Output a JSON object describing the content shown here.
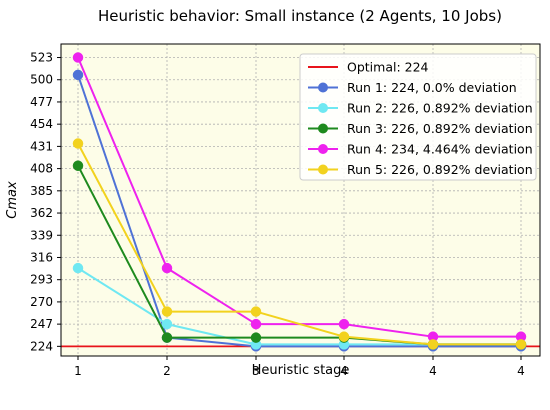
{
  "chart_data": {
    "type": "line",
    "title": "Heuristic behavior: Small instance (2 Agents, 10 Jobs)",
    "xlabel": "Heuristic stage",
    "ylabel": "Cmax",
    "categories": [
      "1",
      "2",
      "3",
      "4",
      "4",
      "4"
    ],
    "y_ticks": [
      224,
      247,
      270,
      293,
      316,
      339,
      362,
      385,
      408,
      431,
      454,
      477,
      500,
      523
    ],
    "ylim": [
      214,
      537
    ],
    "grid": true,
    "legend_placement": "top-right",
    "background_color": "#fdfde8",
    "optimal": {
      "label": "Optimal: 224",
      "value": 224,
      "color": "#e8141b"
    },
    "series": [
      {
        "name": "Run 1: 224, 0.0% deviation",
        "color": "#4f72d6",
        "values": [
          505,
          233,
          224,
          224,
          224,
          224
        ]
      },
      {
        "name": "Run 2: 226, 0.892% deviation",
        "color": "#6fe8f2",
        "values": [
          305,
          247,
          226,
          226,
          226,
          226
        ]
      },
      {
        "name": "Run 3: 226, 0.892% deviation",
        "color": "#1e8a1e",
        "values": [
          411,
          233,
          233,
          233,
          226,
          226
        ]
      },
      {
        "name": "Run 4: 234, 4.464% deviation",
        "color": "#ee22ee",
        "values": [
          523,
          305,
          247,
          247,
          234,
          234
        ]
      },
      {
        "name": "Run 5: 226, 0.892% deviation",
        "color": "#f2d21e",
        "values": [
          434,
          260,
          260,
          234,
          226,
          226
        ]
      }
    ]
  }
}
